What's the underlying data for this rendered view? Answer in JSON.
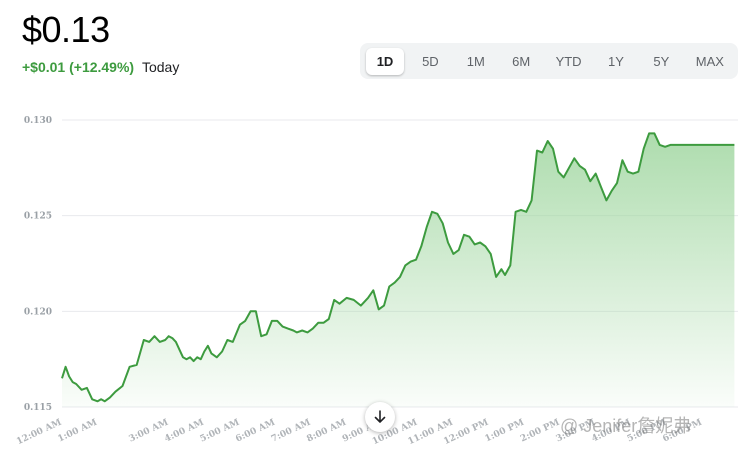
{
  "header": {
    "price": "$0.13",
    "change": "+$0.01 (+12.49%)",
    "period": "Today"
  },
  "ranges": [
    {
      "label": "1D",
      "active": true
    },
    {
      "label": "5D",
      "active": false
    },
    {
      "label": "1M",
      "active": false
    },
    {
      "label": "6M",
      "active": false
    },
    {
      "label": "YTD",
      "active": false
    },
    {
      "label": "1Y",
      "active": false
    },
    {
      "label": "5Y",
      "active": false
    },
    {
      "label": "MAX",
      "active": false
    }
  ],
  "watermark": "@ Jenifer詹妮弗",
  "colors": {
    "line": "#3d9b3f",
    "fill": "#a8dba8",
    "grid": "#e8eaed"
  },
  "chart_data": {
    "type": "area",
    "ylim": [
      0.115,
      0.13
    ],
    "yticks": [
      "0.130",
      "0.125",
      "0.120",
      "0.115"
    ],
    "ytick_values": [
      0.13,
      0.125,
      0.12,
      0.115
    ],
    "xticks": [
      {
        "label": "12:00 AM",
        "t": 0
      },
      {
        "label": "1:00 AM",
        "t": 1
      },
      {
        "label": "3:00 AM",
        "t": 3
      },
      {
        "label": "4:00 AM",
        "t": 4
      },
      {
        "label": "5:00 AM",
        "t": 5
      },
      {
        "label": "6:00 AM",
        "t": 6
      },
      {
        "label": "7:00 AM",
        "t": 7
      },
      {
        "label": "8:00 AM",
        "t": 8
      },
      {
        "label": "9:00 AM",
        "t": 9
      },
      {
        "label": "10:00 AM",
        "t": 10
      },
      {
        "label": "11:00 AM",
        "t": 11
      },
      {
        "label": "12:00 PM",
        "t": 12
      },
      {
        "label": "1:00 PM",
        "t": 13
      },
      {
        "label": "2:00 PM",
        "t": 14
      },
      {
        "label": "3:00 PM",
        "t": 15
      },
      {
        "label": "4:00 PM",
        "t": 16
      },
      {
        "label": "5:00 PM",
        "t": 17
      },
      {
        "label": "6:00 PM",
        "t": 18
      }
    ],
    "series": [
      {
        "t": [
          0,
          0.1,
          0.2,
          0.3,
          0.4,
          0.55,
          0.7,
          0.85,
          1.0,
          1.1,
          1.2,
          1.35,
          1.5,
          1.7,
          1.9,
          2.1,
          2.3,
          2.45,
          2.6,
          2.75,
          2.9,
          3.0,
          3.1,
          3.2,
          3.3,
          3.4,
          3.5,
          3.6,
          3.7,
          3.8,
          3.9,
          4.0,
          4.1,
          4.2,
          4.35,
          4.5,
          4.65,
          4.8,
          5.0,
          5.15,
          5.3,
          5.45,
          5.6,
          5.75,
          5.9,
          6.05,
          6.2,
          6.35,
          6.5,
          6.6,
          6.75,
          6.9,
          7.05,
          7.2,
          7.35,
          7.5,
          7.65,
          7.8,
          8.0,
          8.2,
          8.4,
          8.6,
          8.75,
          8.9,
          9.05,
          9.2,
          9.35,
          9.5,
          9.65,
          9.8,
          9.95,
          10.1,
          10.25,
          10.4,
          10.55,
          10.7,
          10.85,
          11.0,
          11.15,
          11.3,
          11.45,
          11.6,
          11.75,
          11.9,
          12.05,
          12.2,
          12.35,
          12.45,
          12.6,
          12.75,
          12.9,
          13.05,
          13.2,
          13.35,
          13.5,
          13.65,
          13.8,
          13.95,
          14.1,
          14.25,
          14.4,
          14.55,
          14.7,
          14.85,
          15.0,
          15.15,
          15.3,
          15.45,
          15.6,
          15.75,
          15.9,
          16.05,
          16.2,
          16.35,
          16.5,
          16.65,
          16.8,
          16.95,
          17.1,
          17.25,
          17.4,
          17.55,
          17.7,
          17.85,
          18.0,
          18.15,
          18.3,
          18.45,
          18.6,
          18.75,
          18.9
        ],
        "values": [
          0.1165,
          0.1171,
          0.1166,
          0.1163,
          0.1162,
          0.1159,
          0.116,
          0.1154,
          0.1153,
          0.1154,
          0.1153,
          0.1155,
          0.1158,
          0.1161,
          0.1171,
          0.1172,
          0.1185,
          0.1184,
          0.1187,
          0.1184,
          0.1185,
          0.1187,
          0.1186,
          0.1184,
          0.118,
          0.1176,
          0.1175,
          0.1176,
          0.1174,
          0.1176,
          0.1175,
          0.1179,
          0.1182,
          0.1178,
          0.1176,
          0.1179,
          0.1185,
          0.1184,
          0.1193,
          0.1195,
          0.12,
          0.12,
          0.1187,
          0.1188,
          0.1195,
          0.1195,
          0.1192,
          0.1191,
          0.119,
          0.1189,
          0.119,
          0.1189,
          0.1191,
          0.1194,
          0.1194,
          0.1196,
          0.1206,
          0.1204,
          0.1207,
          0.1206,
          0.1203,
          0.1207,
          0.1211,
          0.1201,
          0.1203,
          0.1213,
          0.1215,
          0.1218,
          0.1224,
          0.1226,
          0.1227,
          0.1234,
          0.1244,
          0.1252,
          0.1251,
          0.1246,
          0.1236,
          0.123,
          0.1232,
          0.124,
          0.1239,
          0.1235,
          0.1236,
          0.1234,
          0.123,
          0.1218,
          0.1222,
          0.1219,
          0.1224,
          0.1252,
          0.1253,
          0.1252,
          0.1258,
          0.1284,
          0.1283,
          0.1289,
          0.1285,
          0.1273,
          0.127,
          0.1275,
          0.128,
          0.1276,
          0.1274,
          0.1268,
          0.1272,
          0.1265,
          0.1258,
          0.1263,
          0.1267,
          0.1279,
          0.1273,
          0.1272,
          0.1273,
          0.1285,
          0.1293,
          0.1293,
          0.1287,
          0.1286,
          0.1287,
          0.1287,
          0.1287,
          0.1287,
          0.1287,
          0.1287,
          0.1287,
          0.1287,
          0.1287,
          0.1287,
          0.1287,
          0.1287,
          0.1287
        ]
      }
    ]
  }
}
